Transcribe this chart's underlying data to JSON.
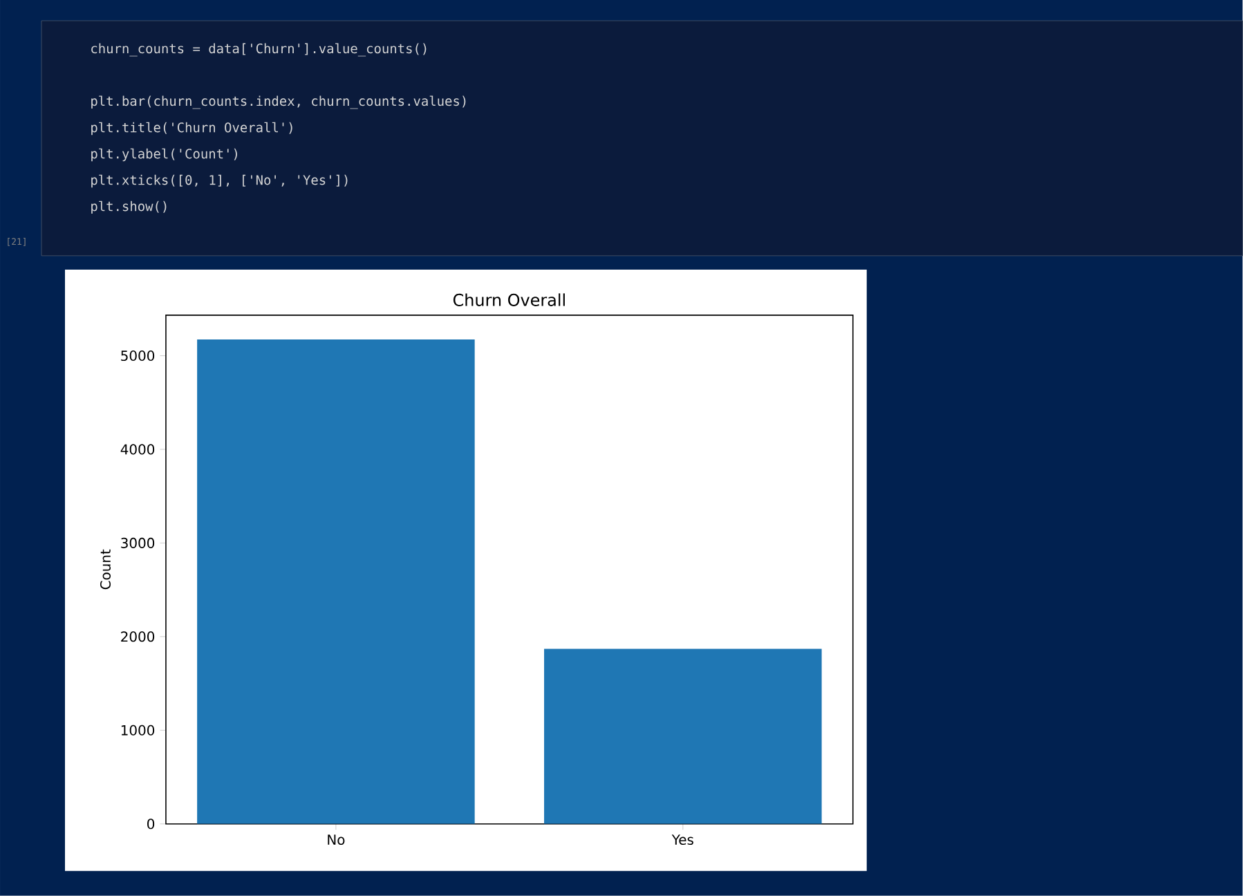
{
  "chart_data": {
    "type": "bar",
    "title": "Churn Overall",
    "ylabel": "Count",
    "categories": [
      "No",
      "Yes"
    ],
    "values": [
      5174,
      1869
    ],
    "color": "#1f77b4",
    "ylim": [
      0,
      5433
    ],
    "yticks": [
      0,
      1000,
      2000,
      3000,
      4000,
      5000
    ],
    "annotations": [
      "churn_counts = data['Churn'].value_counts()",
      "plt.bar(churn_counts.index, churn_counts.values)",
      "plt.title('Churn Overall')",
      "plt.ylabel('Count')",
      "plt.xticks([0, 1], ['No', 'Yes'])",
      "plt.show()",
      "[21]"
    ]
  }
}
